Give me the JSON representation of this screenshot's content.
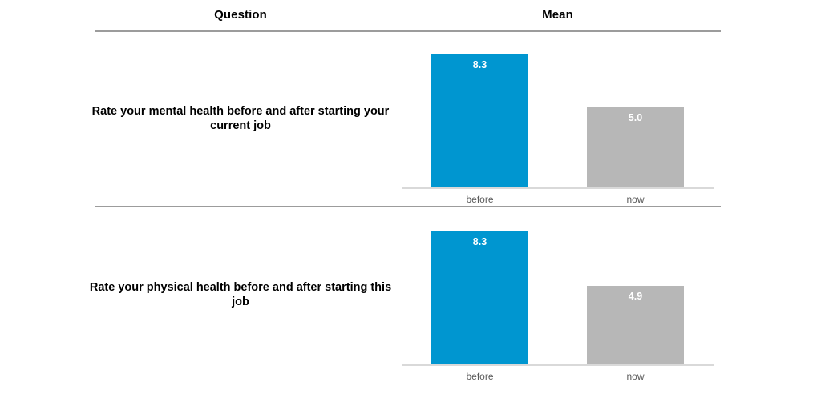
{
  "page": {
    "background": "#ffffff",
    "rule_color": "#9c9c9c",
    "baseline_color": "#d9d9d9"
  },
  "table": {
    "columns": [
      {
        "label": "Question"
      },
      {
        "label": "Mean"
      }
    ]
  },
  "chart_data": [
    {
      "type": "bar",
      "title": "Rate your mental health before and after starting your current job",
      "categories": [
        "before",
        "now"
      ],
      "values": [
        8.3,
        5.0
      ],
      "value_labels": [
        "8.3",
        "5.0"
      ],
      "bar_colors": [
        "#0096d0",
        "#b7b7b7"
      ],
      "value_label_color": "#ffffff",
      "category_label_color": "#595959",
      "xlabel": "",
      "ylabel": "Mean",
      "ylim": [
        0,
        10
      ],
      "grid": false,
      "legend": false
    },
    {
      "type": "bar",
      "title": "Rate your physical health before and after starting this job",
      "categories": [
        "before",
        "now"
      ],
      "values": [
        8.3,
        4.9
      ],
      "value_labels": [
        "8.3",
        "4.9"
      ],
      "bar_colors": [
        "#0096d0",
        "#b7b7b7"
      ],
      "value_label_color": "#ffffff",
      "category_label_color": "#595959",
      "xlabel": "",
      "ylabel": "Mean",
      "ylim": [
        0,
        10
      ],
      "grid": false,
      "legend": false
    }
  ]
}
